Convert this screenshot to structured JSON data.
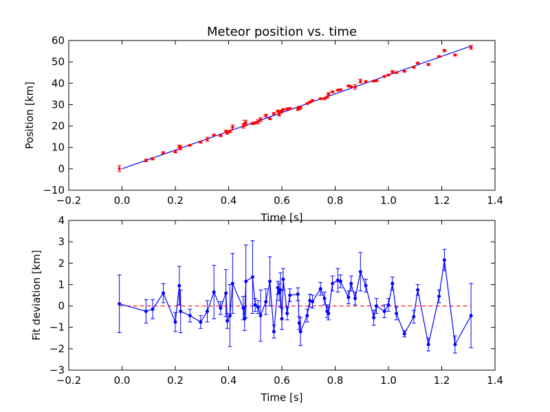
{
  "chart_data": [
    {
      "type": "scatter",
      "title": "Meteor position vs. time",
      "xlabel": "Time [s]",
      "ylabel": "Position [km]",
      "xlim": [
        -0.2,
        1.4
      ],
      "ylim": [
        -10,
        60
      ],
      "xticks": [
        "−0.2",
        "0.0",
        "0.2",
        "0.4",
        "0.6",
        "0.8",
        "1.0",
        "1.2",
        "1.4"
      ],
      "yticks": [
        "−10",
        "0",
        "10",
        "20",
        "30",
        "40",
        "50",
        "60"
      ],
      "grid": false,
      "marker_color": "#ff0000",
      "line_color": "#0000ff",
      "fit_line": {
        "x": [
          0.0,
          1.31
        ],
        "y": [
          0.0,
          57.4
        ]
      },
      "series": [
        {
          "x": [
            -0.01,
            0.09,
            0.115,
            0.155,
            0.2,
            0.215,
            0.22,
            0.255,
            0.295,
            0.32,
            0.345,
            0.37,
            0.39,
            0.395,
            0.405,
            0.415,
            0.455,
            0.46,
            0.465,
            0.49,
            0.5,
            0.51,
            0.52,
            0.54,
            0.555,
            0.57,
            0.585,
            0.59,
            0.595,
            0.6,
            0.605,
            0.62,
            0.63,
            0.66,
            0.665,
            0.67,
            0.695,
            0.705,
            0.715,
            0.745,
            0.76,
            0.77,
            0.775,
            0.79,
            0.81,
            0.82,
            0.85,
            0.86,
            0.875,
            0.895,
            0.915,
            0.945,
            0.955,
            0.985,
            1.0,
            1.015,
            1.03,
            1.06,
            1.095,
            1.11,
            1.15,
            1.19,
            1.21,
            1.25,
            1.31
          ],
          "y": [
            0.1,
            3.9,
            4.7,
            7.5,
            8.0,
            10.2,
            9.8,
            11.0,
            12.5,
            13.8,
            15.8,
            15.5,
            17.5,
            16.7,
            17.5,
            19.5,
            20.0,
            21.3,
            21.5,
            21.2,
            21.5,
            22.0,
            23.0,
            24.9,
            23.4,
            25.8,
            27.0,
            25.5,
            26.5,
            27.0,
            27.7,
            28.0,
            28.2,
            28.0,
            28.5,
            28.6,
            30.5,
            31.2,
            32.0,
            32.8,
            32.8,
            33.5,
            35.0,
            36.0,
            36.8,
            37.0,
            38.8,
            38.4,
            38.3,
            41.0,
            40.8,
            41.0,
            41.2,
            43.2,
            43.9,
            45.4,
            45.0,
            45.6,
            47.5,
            49.5,
            48.8,
            52.5,
            55.3,
            53.2,
            56.8
          ],
          "err": [
            1.4,
            0.6,
            0.5,
            0.5,
            0.5,
            0.9,
            1.0,
            0.3,
            0.4,
            0.9,
            0.3,
            0.3,
            0.6,
            0.5,
            0.5,
            1.0,
            1.0,
            1.4,
            1.2,
            0.5,
            0.5,
            1.0,
            0.9,
            0.6,
            0.4,
            0.5,
            0.4,
            0.8,
            0.5,
            0.5,
            0.3,
            0.3,
            0.4,
            0.7,
            0.8,
            0.3,
            0.3,
            0.3,
            0.3,
            0.3,
            0.4,
            0.3,
            0.6,
            0.4,
            0.3,
            0.3,
            0.3,
            0.3,
            1.1,
            0.9,
            0.4,
            0.3,
            0.3,
            0.3,
            0.3,
            0.5,
            0.3,
            0.3,
            0.3,
            0.3,
            0.4,
            0.3,
            0.5,
            0.4,
            0.9
          ]
        }
      ]
    },
    {
      "type": "line",
      "title": "",
      "xlabel": "Time [s]",
      "ylabel": "Fit deviation [km]",
      "xlim": [
        -0.2,
        1.4
      ],
      "ylim": [
        -3,
        4
      ],
      "xticks": [
        "−0.2",
        "0.0",
        "0.2",
        "0.4",
        "0.6",
        "0.8",
        "1.0",
        "1.2",
        "1.4"
      ],
      "yticks": [
        "−3",
        "−2",
        "−1",
        "0",
        "1",
        "2",
        "3",
        "4"
      ],
      "grid": false,
      "line_color": "#0000ff",
      "zero_line_color": "#ff0000",
      "series": [
        {
          "x": [
            -0.01,
            0.09,
            0.115,
            0.155,
            0.2,
            0.215,
            0.22,
            0.255,
            0.295,
            0.32,
            0.345,
            0.37,
            0.39,
            0.395,
            0.405,
            0.415,
            0.455,
            0.46,
            0.465,
            0.49,
            0.5,
            0.51,
            0.52,
            0.54,
            0.555,
            0.57,
            0.585,
            0.59,
            0.595,
            0.6,
            0.605,
            0.62,
            0.63,
            0.66,
            0.665,
            0.67,
            0.695,
            0.705,
            0.715,
            0.745,
            0.76,
            0.77,
            0.775,
            0.79,
            0.81,
            0.82,
            0.85,
            0.86,
            0.875,
            0.895,
            0.915,
            0.945,
            0.955,
            0.985,
            1.0,
            1.015,
            1.03,
            1.06,
            1.095,
            1.11,
            1.15,
            1.19,
            1.21,
            1.25,
            1.31
          ],
          "y": [
            0.1,
            -0.25,
            -0.15,
            0.6,
            -0.75,
            0.95,
            -0.25,
            -0.45,
            -0.75,
            -0.25,
            0.65,
            -0.1,
            0.6,
            -0.7,
            -0.45,
            1.05,
            -0.1,
            -0.6,
            1.15,
            1.35,
            0.05,
            -0.05,
            -0.45,
            0.2,
            1.15,
            -1.2,
            0.85,
            0.65,
            0.75,
            -0.6,
            1.25,
            -0.35,
            0.5,
            0.55,
            -0.8,
            -1.2,
            -0.45,
            0.25,
            0.2,
            0.8,
            0.35,
            -0.25,
            -0.35,
            1.05,
            1.2,
            1.15,
            0.4,
            1.05,
            0.35,
            1.6,
            0.95,
            -0.55,
            0.0,
            -0.25,
            0.05,
            1.05,
            -0.35,
            -1.3,
            -0.5,
            0.75,
            -1.8,
            0.45,
            2.15,
            -1.8,
            -0.45
          ],
          "err": [
            1.35,
            0.55,
            0.45,
            0.45,
            0.45,
            0.9,
            1.0,
            0.3,
            0.3,
            0.5,
            1.25,
            0.3,
            1.1,
            0.35,
            1.45,
            1.4,
            0.55,
            0.55,
            1.7,
            1.7,
            0.3,
            0.3,
            1.2,
            0.6,
            1.15,
            0.3,
            0.3,
            0.4,
            0.8,
            0.5,
            0.5,
            0.3,
            0.3,
            0.3,
            0.3,
            0.65,
            0.3,
            0.3,
            0.3,
            0.3,
            0.3,
            0.3,
            0.3,
            0.35,
            0.55,
            0.3,
            0.3,
            0.35,
            0.3,
            0.9,
            0.3,
            0.35,
            0.35,
            0.3,
            0.3,
            0.3,
            0.3,
            0.15,
            0.3,
            0.25,
            0.3,
            0.3,
            0.5,
            0.4,
            1.5
          ]
        }
      ]
    }
  ]
}
